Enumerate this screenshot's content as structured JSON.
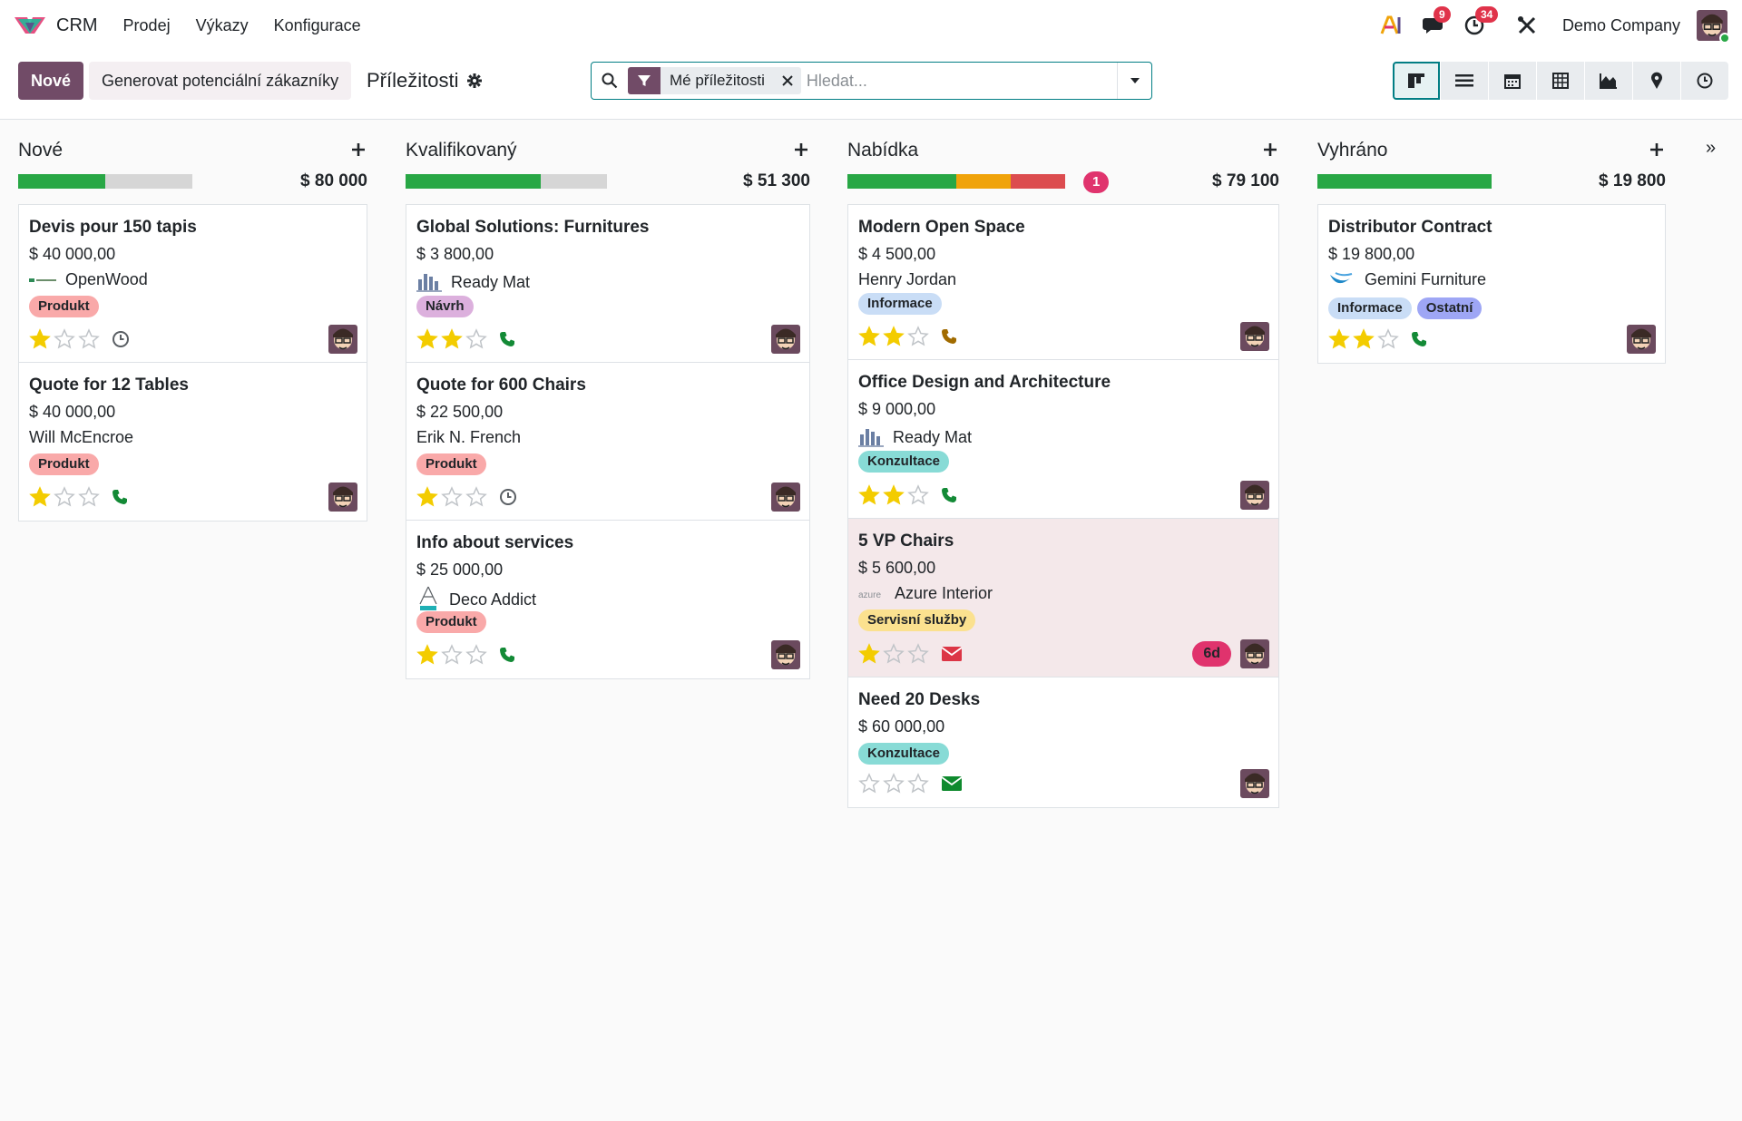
{
  "app": {
    "name": "CRM",
    "menus": [
      "Prodej",
      "Výkazy",
      "Konfigurace"
    ]
  },
  "systray": {
    "messages_count": "9",
    "activities_count": "34",
    "company": "Demo Company"
  },
  "toolbar": {
    "new_label": "Nové",
    "generate_label": "Generovat potenciální zákazníky",
    "breadcrumb": "Příležitosti",
    "facet_value": "Mé příležitosti",
    "search_placeholder": "Hledat..."
  },
  "colors": {
    "brand": "#714b67",
    "teal": "#017e84",
    "green": "#28a745",
    "orange": "#f0a30a",
    "red": "#dc4c4f",
    "badge": "#e0336d"
  },
  "columns": [
    {
      "title": "Nové",
      "total": "$ 80 000",
      "progress": [
        {
          "color": "#28a745",
          "fraction": 0.5
        },
        {
          "color": "#d6d6d6",
          "fraction": 0.5
        }
      ],
      "cards": [
        {
          "name": "Devis pour 150 tapis",
          "amount": "$ 40 000,00",
          "partner": "OpenWood",
          "partner_logo": "openwood",
          "tags": [
            {
              "label": "Produkt",
              "color": "#f9a9a9"
            }
          ],
          "stars": 1,
          "activity": "clock-icon"
        },
        {
          "name": "Quote for 12 Tables",
          "amount": "$ 40 000,00",
          "partner": "Will McEncroe",
          "partner_logo": "",
          "tags": [
            {
              "label": "Produkt",
              "color": "#f9a9a9"
            }
          ],
          "stars": 1,
          "activity": "phone-icon"
        }
      ]
    },
    {
      "title": "Kvalifikovaný",
      "total": "$ 51 300",
      "progress": [
        {
          "color": "#28a745",
          "fraction": 0.67
        },
        {
          "color": "#d6d6d6",
          "fraction": 0.33
        }
      ],
      "cards": [
        {
          "name": "Global Solutions: Furnitures",
          "amount": "$ 3 800,00",
          "partner": "Ready Mat",
          "partner_logo": "readymat",
          "tags": [
            {
              "label": "Návrh",
              "color": "#dcb0dd"
            }
          ],
          "stars": 2,
          "activity": "phone-icon"
        },
        {
          "name": "Quote for 600 Chairs",
          "amount": "$ 22 500,00",
          "partner": "Erik N. French",
          "partner_logo": "",
          "tags": [
            {
              "label": "Produkt",
              "color": "#f9a9a9"
            }
          ],
          "stars": 1,
          "activity": "clock-icon"
        },
        {
          "name": "Info about services",
          "amount": "$ 25 000,00",
          "partner": "Deco Addict",
          "partner_logo": "deco",
          "tags": [
            {
              "label": "Produkt",
              "color": "#f9a9a9"
            }
          ],
          "stars": 1,
          "activity": "phone-icon"
        }
      ]
    },
    {
      "title": "Nabídka",
      "total": "$ 79 100",
      "count_badge": "1",
      "progress": [
        {
          "color": "#28a745",
          "fraction": 0.5
        },
        {
          "color": "#f0a30a",
          "fraction": 0.25
        },
        {
          "color": "#dc4c4f",
          "fraction": 0.25
        }
      ],
      "cards": [
        {
          "name": "Modern Open Space",
          "amount": "$ 4 500,00",
          "partner": "Henry Jordan",
          "partner_logo": "",
          "tags": [
            {
              "label": "Informace",
              "color": "#c9ddf6"
            }
          ],
          "stars": 2,
          "activity": "phone-icon-warning"
        },
        {
          "name": "Office Design and Architecture",
          "amount": "$ 9 000,00",
          "partner": "Ready Mat",
          "partner_logo": "readymat",
          "tags": [
            {
              "label": "Konzultace",
              "color": "#88dbd6"
            }
          ],
          "stars": 2,
          "activity": "phone-icon"
        },
        {
          "name": "5 VP Chairs",
          "amount": "$ 5 600,00",
          "partner": "Azure Interior",
          "partner_logo": "azure",
          "tags": [
            {
              "label": "Servisní služby",
              "color": "#fbe18f"
            }
          ],
          "stars": 1,
          "activity": "envelope-icon-overdue",
          "deadline": "6d",
          "highlight": true
        },
        {
          "name": "Need 20 Desks",
          "amount": "$ 60 000,00",
          "partner": "",
          "partner_logo": "",
          "tags": [
            {
              "label": "Konzultace",
              "color": "#88dbd6"
            }
          ],
          "stars": 0,
          "activity": "envelope-icon"
        }
      ]
    },
    {
      "title": "Vyhráno",
      "total": "$ 19 800",
      "progress": [
        {
          "color": "#28a745",
          "fraction": 1.0
        }
      ],
      "cards": [
        {
          "name": "Distributor Contract",
          "amount": "$ 19 800,00",
          "partner": "Gemini Furniture",
          "partner_logo": "gemini",
          "tags": [
            {
              "label": "Informace",
              "color": "#c9ddf6"
            },
            {
              "label": "Ostatní",
              "color": "#9ea6f5"
            }
          ],
          "stars": 2,
          "activity": "phone-icon"
        }
      ]
    }
  ]
}
